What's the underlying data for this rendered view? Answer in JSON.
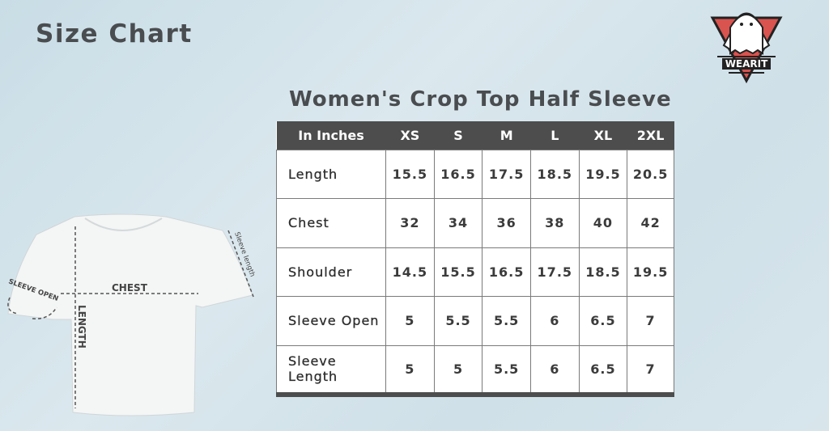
{
  "page_title": "Size Chart",
  "chart_title": "Women's Crop Top Half Sleeve",
  "logo": {
    "text": "WEARIT",
    "icon": "ghost-icon"
  },
  "diagram": {
    "chest": "CHEST",
    "length": "LENGTH",
    "sleeve_open": "SLEEVE OPEN",
    "sleeve_length": "Sleeve length"
  },
  "table": {
    "headers": [
      "In Inches",
      "XS",
      "S",
      "M",
      "L",
      "XL",
      "2XL"
    ],
    "rows": [
      {
        "label": "Length",
        "values": [
          "15.5",
          "16.5",
          "17.5",
          "18.5",
          "19.5",
          "20.5"
        ]
      },
      {
        "label": "Chest",
        "values": [
          "32",
          "34",
          "36",
          "38",
          "40",
          "42"
        ]
      },
      {
        "label": "Shoulder",
        "values": [
          "14.5",
          "15.5",
          "16.5",
          "17.5",
          "18.5",
          "19.5"
        ]
      },
      {
        "label": "Sleeve Open",
        "values": [
          "5",
          "5.5",
          "5.5",
          "6",
          "6.5",
          "7"
        ]
      },
      {
        "label": "Sleeve Length",
        "values": [
          "5",
          "5",
          "5.5",
          "6",
          "6.5",
          "7"
        ]
      }
    ]
  }
}
